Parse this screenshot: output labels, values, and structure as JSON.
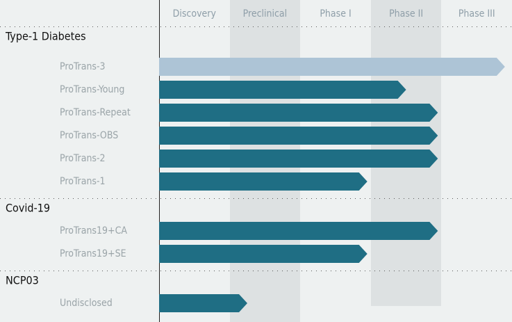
{
  "pipeline": {
    "phases": [
      "Discovery",
      "Preclinical",
      "Phase I",
      "Phase II",
      "Phase III"
    ],
    "groups": [
      {
        "name": "Type-1 Diabetes",
        "programs": [
          {
            "name": "ProTrans-3",
            "progress": 4.9,
            "color": "#adc4d6"
          },
          {
            "name": "ProTrans-Young",
            "progress": 3.5,
            "color": "#1f6e84"
          },
          {
            "name": "ProTrans-Repeat",
            "progress": 3.95,
            "color": "#1f6e84"
          },
          {
            "name": "ProTrans-OBS",
            "progress": 3.95,
            "color": "#1f6e84"
          },
          {
            "name": "ProTrans-2",
            "progress": 3.95,
            "color": "#1f6e84"
          },
          {
            "name": "ProTrans-1",
            "progress": 2.95,
            "color": "#1f6e84"
          }
        ]
      },
      {
        "name": "Covid-19",
        "programs": [
          {
            "name": "ProTrans19+CA",
            "progress": 3.95,
            "color": "#1f6e84"
          },
          {
            "name": "ProTrans19+SE",
            "progress": 2.95,
            "color": "#1f6e84"
          }
        ]
      },
      {
        "name": "NCP03",
        "programs": [
          {
            "name": "Undisclosed",
            "progress": 1.25,
            "color": "#1f6e84"
          }
        ]
      }
    ]
  }
}
